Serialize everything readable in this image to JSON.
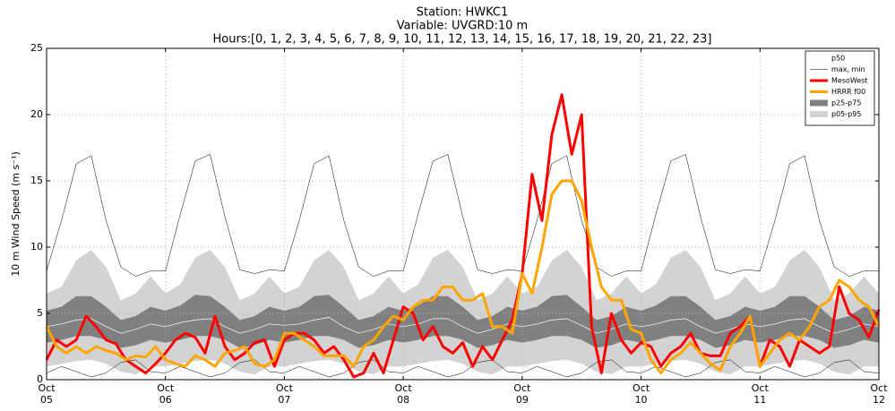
{
  "chart_data": {
    "type": "line",
    "title": "Station: HWKC1",
    "subtitle": "Variable: UVGRD:10 m",
    "hours_label": "Hours:[0, 1, 2, 3, 4, 5, 6, 7, 8, 9, 10, 11, 12, 13, 14, 15, 16, 17, 18, 19, 20, 21, 22, 23]",
    "y_label": "10 m Wind Speed (m s⁻¹)",
    "xlim": [
      0,
      168
    ],
    "xticks": [
      {
        "value": 0,
        "label": "Oct\n05"
      },
      {
        "value": 24,
        "label": "Oct\n06"
      },
      {
        "value": 48,
        "label": "Oct\n07"
      },
      {
        "value": 72,
        "label": "Oct\n08"
      },
      {
        "value": 96,
        "label": "Oct\n09"
      },
      {
        "value": 120,
        "label": "Oct\n10"
      },
      {
        "value": 144,
        "label": "Oct\n11"
      },
      {
        "value": 168,
        "label": "Oct\n12"
      }
    ],
    "ylim": [
      0,
      25
    ],
    "yticks": [
      0,
      5,
      10,
      15,
      20,
      25
    ],
    "grid": true,
    "legend": "upper right",
    "series": [
      {
        "name": "p50",
        "color": "#ffffff",
        "linewidth": 0.7,
        "x": [
          0,
          3,
          6,
          9,
          12,
          15,
          18,
          21,
          24,
          27,
          30,
          33,
          36,
          39,
          42,
          45,
          48,
          51,
          54,
          57,
          60,
          63,
          66,
          69,
          72,
          75,
          78,
          81,
          84,
          87,
          90,
          93,
          96,
          99,
          102,
          105,
          108,
          111,
          114,
          117,
          120,
          123,
          126,
          129,
          132,
          135,
          138,
          141,
          144,
          147,
          150,
          153,
          156,
          159,
          162,
          165,
          168
        ],
        "values": [
          4,
          4.2,
          4.5,
          4.6,
          4,
          3.5,
          3.8,
          4.2,
          4,
          4.3,
          4.5,
          4.6,
          4,
          3.5,
          3.8,
          4.2,
          4.1,
          4.2,
          4.5,
          4.7,
          4,
          3.5,
          3.8,
          4.2,
          4,
          4.2,
          4.6,
          4.6,
          4,
          3.5,
          3.8,
          4.2,
          4,
          4.2,
          4.5,
          4.6,
          4.1,
          3.5,
          3.8,
          4.2,
          4,
          4.2,
          4.5,
          4.6,
          4,
          3.5,
          3.8,
          4.2,
          4,
          4.2,
          4.5,
          4.6,
          4,
          3.5,
          3.8,
          4.2,
          4
        ]
      },
      {
        "name": "max, min",
        "color": "#000000",
        "linewidth": 0.5,
        "x": [
          0,
          3,
          6,
          9,
          12,
          15,
          18,
          21,
          24,
          27,
          30,
          33,
          36,
          39,
          42,
          45,
          48,
          51,
          54,
          57,
          60,
          63,
          66,
          69,
          72,
          75,
          78,
          81,
          84,
          87,
          90,
          93,
          96,
          99,
          102,
          105,
          108,
          111,
          114,
          117,
          120,
          123,
          126,
          129,
          132,
          135,
          138,
          141,
          144,
          147,
          150,
          153,
          156,
          159,
          162,
          165,
          168
        ],
        "upper": [
          8.2,
          12,
          16.3,
          16.9,
          12,
          8.5,
          7.8,
          8.2,
          8.2,
          12.5,
          16.5,
          17,
          12.3,
          8.3,
          8,
          8.3,
          8.2,
          12,
          16.3,
          16.9,
          12,
          8.5,
          7.8,
          8.2,
          8.2,
          12.5,
          16.5,
          17,
          12.3,
          8.3,
          8,
          8.3,
          8.2,
          12,
          16.3,
          16.9,
          12,
          8.5,
          7.8,
          8.2,
          8.2,
          12.5,
          16.5,
          17,
          12.3,
          8.3,
          8,
          8.3,
          8.2,
          12,
          16.3,
          16.9,
          12,
          8.5,
          7.8,
          8.2,
          8.2
        ],
        "lower": [
          0.5,
          1,
          0.6,
          0.2,
          0.5,
          1.3,
          1.5,
          0.6,
          0.5,
          1,
          0.6,
          0.2,
          0.5,
          1.3,
          1.5,
          0.6,
          0.5,
          1,
          0.6,
          0.2,
          0.5,
          1.3,
          1.5,
          0.6,
          0.5,
          1,
          0.6,
          0.2,
          0.5,
          1.3,
          1.5,
          0.6,
          0.5,
          1,
          0.6,
          0.2,
          0.5,
          1.3,
          1.5,
          0.6,
          0.5,
          1,
          0.6,
          0.2,
          0.5,
          1.3,
          1.5,
          0.6,
          0.5,
          1,
          0.6,
          0.2,
          0.5,
          1.3,
          1.5,
          0.6,
          0.5
        ]
      },
      {
        "name": "MesoWest",
        "color": "#ff0000",
        "linewidth": 3,
        "x": [
          0,
          2,
          4,
          6,
          8,
          10,
          12,
          14,
          16,
          18,
          20,
          22,
          24,
          26,
          28,
          30,
          32,
          34,
          36,
          38,
          40,
          42,
          44,
          46,
          48,
          50,
          52,
          54,
          56,
          58,
          60,
          62,
          64,
          66,
          68,
          70,
          72,
          74,
          76,
          78,
          80,
          82,
          84,
          86,
          88,
          90,
          92,
          94,
          96,
          98,
          100,
          102,
          104,
          106,
          108,
          110,
          112,
          114,
          116,
          118,
          120,
          122,
          124,
          126,
          128,
          130,
          132,
          134,
          136,
          138,
          140,
          142,
          144,
          146,
          148,
          150,
          152,
          154,
          156,
          158,
          160,
          162,
          164,
          166,
          168
        ],
        "values": [
          1.5,
          3,
          2.5,
          3,
          4.8,
          4,
          3,
          2.7,
          1.5,
          1,
          0.5,
          1.2,
          2,
          3,
          3.5,
          3.2,
          2,
          4.8,
          2.5,
          1.5,
          2,
          2.8,
          3,
          1,
          3,
          3.5,
          3.5,
          3,
          2,
          2.5,
          1.5,
          0.2,
          0.5,
          2,
          0.5,
          3,
          5.5,
          5,
          3,
          4,
          2.5,
          2,
          2.8,
          1,
          2.5,
          1.5,
          3,
          4.5,
          8,
          15.5,
          12,
          18.5,
          21.5,
          17,
          20,
          4,
          0.5,
          5,
          3,
          2,
          2.8,
          2.5,
          1,
          2,
          2.5,
          3.5,
          2,
          1.8,
          1.8,
          3.5,
          4,
          4.8,
          1,
          3,
          2.5,
          1,
          3,
          2.5,
          2,
          2.5,
          7,
          5,
          4.5,
          3.2,
          5.3
        ]
      },
      {
        "name": "HRRR f00",
        "color": "#ffa500",
        "linewidth": 3,
        "x": [
          0,
          2,
          4,
          6,
          8,
          10,
          12,
          14,
          16,
          18,
          20,
          22,
          24,
          26,
          28,
          30,
          32,
          34,
          36,
          38,
          40,
          42,
          44,
          46,
          48,
          50,
          52,
          54,
          56,
          58,
          60,
          62,
          64,
          66,
          68,
          70,
          72,
          74,
          76,
          78,
          80,
          82,
          84,
          86,
          88,
          90,
          92,
          94,
          96,
          98,
          100,
          102,
          104,
          106,
          108,
          110,
          112,
          114,
          116,
          118,
          120,
          122,
          124,
          126,
          128,
          130,
          132,
          134,
          136,
          138,
          140,
          142,
          144,
          146,
          148,
          150,
          152,
          154,
          156,
          158,
          160,
          162,
          164,
          166,
          168
        ],
        "values": [
          4,
          2.5,
          2,
          2.5,
          2,
          2.5,
          2.2,
          2,
          1.5,
          1.8,
          1.7,
          2.5,
          1.5,
          1.2,
          1,
          1.8,
          1.5,
          1,
          2,
          2.2,
          2.5,
          1.2,
          1,
          1.5,
          3.5,
          3.5,
          3,
          2.5,
          1.8,
          1.8,
          1.8,
          1,
          2.5,
          3,
          4,
          4.8,
          4.5,
          5.5,
          6,
          6,
          7,
          7,
          6,
          6,
          6.5,
          4,
          4,
          3.5,
          8,
          6.5,
          10,
          14,
          15,
          15,
          13.5,
          10,
          7,
          6,
          6,
          3.8,
          3.5,
          1.5,
          0.5,
          1.5,
          2,
          2.8,
          2,
          1.2,
          0.7,
          2.5,
          3.5,
          4.8,
          1,
          2,
          3,
          3.5,
          3,
          4,
          5.5,
          6,
          7.5,
          7,
          6,
          5.5,
          4
        ]
      },
      {
        "name": "p25-p75",
        "color": "#808080",
        "x": [
          0,
          3,
          6,
          9,
          12,
          15,
          18,
          21,
          24,
          27,
          30,
          33,
          36,
          39,
          42,
          45,
          48,
          51,
          54,
          57,
          60,
          63,
          66,
          69,
          72,
          75,
          78,
          81,
          84,
          87,
          90,
          93,
          96,
          99,
          102,
          105,
          108,
          111,
          114,
          117,
          120,
          123,
          126,
          129,
          132,
          135,
          138,
          141,
          144,
          147,
          150,
          153,
          156,
          159,
          162,
          165,
          168
        ],
        "upper": [
          5.2,
          5.5,
          6.3,
          6.3,
          5.5,
          4.5,
          4.8,
          5.5,
          5.2,
          5.6,
          6.4,
          6.3,
          5.5,
          4.5,
          4.8,
          5.5,
          5.2,
          5.5,
          6.3,
          6.4,
          5.5,
          4.5,
          4.8,
          5.5,
          5.2,
          5.6,
          6.3,
          6.3,
          5.5,
          4.5,
          4.8,
          5.5,
          5.2,
          5.5,
          6.3,
          6.4,
          5.5,
          4.5,
          4.8,
          5.5,
          5.2,
          5.6,
          6.3,
          6.3,
          5.5,
          4.5,
          4.8,
          5.5,
          5.2,
          5.5,
          6.3,
          6.3,
          5.5,
          4.5,
          4.8,
          5.5,
          5.2
        ],
        "lower": [
          2.8,
          3,
          3.3,
          3.3,
          3,
          2.4,
          2.6,
          3,
          2.8,
          3,
          3.3,
          3.3,
          3,
          2.4,
          2.6,
          3,
          2.8,
          3,
          3.3,
          3.3,
          3,
          2.4,
          2.6,
          3,
          2.8,
          3,
          3.3,
          3.3,
          3,
          2.4,
          2.6,
          3,
          2.8,
          3,
          3.3,
          3.3,
          3,
          2.4,
          2.6,
          3,
          2.8,
          3,
          3.3,
          3.3,
          3,
          2.4,
          2.6,
          3,
          2.8,
          3,
          3.3,
          3.3,
          3,
          2.4,
          2.6,
          3,
          2.8
        ]
      },
      {
        "name": "p05-p95",
        "color": "#d3d3d3",
        "x": [
          0,
          3,
          6,
          9,
          12,
          15,
          18,
          21,
          24,
          27,
          30,
          33,
          36,
          39,
          42,
          45,
          48,
          51,
          54,
          57,
          60,
          63,
          66,
          69,
          72,
          75,
          78,
          81,
          84,
          87,
          90,
          93,
          96,
          99,
          102,
          105,
          108,
          111,
          114,
          117,
          120,
          123,
          126,
          129,
          132,
          135,
          138,
          141,
          144,
          147,
          150,
          153,
          156,
          159,
          162,
          165,
          168
        ],
        "upper": [
          6.5,
          7,
          9,
          9.8,
          8.5,
          6,
          6.5,
          7.8,
          6.5,
          7.2,
          9.2,
          9.8,
          8.5,
          6,
          6.5,
          7.8,
          6.5,
          7,
          9,
          9.8,
          8.5,
          6,
          6.5,
          7.8,
          6.5,
          7.2,
          9.2,
          9.8,
          8.5,
          6,
          6.5,
          7.8,
          6.5,
          7,
          9,
          9.8,
          8.5,
          6,
          6.5,
          7.8,
          6.5,
          7.2,
          9.2,
          9.8,
          8.5,
          6,
          6.5,
          7.8,
          6.5,
          7,
          9,
          9.8,
          8.5,
          6,
          6.5,
          7.8,
          6.5
        ],
        "lower": [
          1,
          1.2,
          1.4,
          1.5,
          1.2,
          0.6,
          0.4,
          1,
          1,
          1.2,
          1.4,
          1.5,
          1.2,
          0.6,
          0.4,
          1,
          1,
          1.2,
          1.4,
          1.5,
          1.2,
          0.6,
          0.4,
          1,
          1,
          1.2,
          1.4,
          1.5,
          1.2,
          0.6,
          0.4,
          1,
          1,
          1.2,
          1.4,
          1.5,
          1.2,
          0.6,
          0.4,
          1,
          1,
          1.2,
          1.4,
          1.5,
          1.2,
          0.6,
          0.4,
          1,
          1,
          1.2,
          1.4,
          1.5,
          1.2,
          0.6,
          0.4,
          1,
          1
        ]
      }
    ]
  }
}
